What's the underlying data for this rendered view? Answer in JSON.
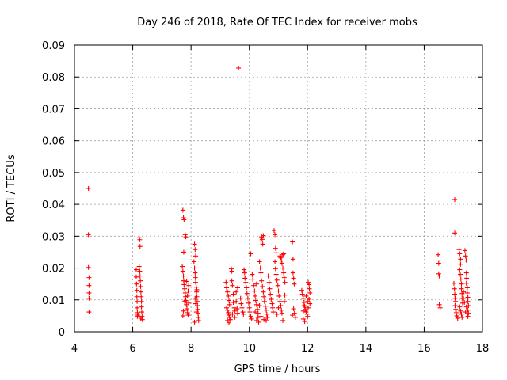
{
  "chart_data": {
    "type": "scatter",
    "title": "Day 246 of 2018, Rate Of TEC Index for receiver mobs",
    "xlabel": "GPS time / hours",
    "ylabel": "ROTI / TECUs",
    "xlim": [
      4,
      18
    ],
    "ylim": [
      0,
      0.09
    ],
    "xticks": [
      "4",
      "6",
      "8",
      "10",
      "12",
      "14",
      "16",
      "18"
    ],
    "yticks": [
      "0",
      "0.01",
      "0.02",
      "0.03",
      "0.04",
      "0.05",
      "0.06",
      "0.07",
      "0.08",
      "0.09"
    ],
    "grid": true,
    "marker": "+",
    "color": "#ff0000",
    "series": [
      {
        "name": "ROTI",
        "points": [
          [
            4.48,
            0.045
          ],
          [
            4.48,
            0.0305
          ],
          [
            4.48,
            0.0202
          ],
          [
            4.5,
            0.017
          ],
          [
            4.5,
            0.0145
          ],
          [
            4.5,
            0.0122
          ],
          [
            4.5,
            0.0105
          ],
          [
            4.5,
            0.0062
          ],
          [
            6.12,
            0.0195
          ],
          [
            6.12,
            0.0172
          ],
          [
            6.13,
            0.015
          ],
          [
            6.14,
            0.013
          ],
          [
            6.14,
            0.011
          ],
          [
            6.15,
            0.0095
          ],
          [
            6.15,
            0.0075
          ],
          [
            6.16,
            0.006
          ],
          [
            6.16,
            0.0048
          ],
          [
            6.18,
            0.0052
          ],
          [
            6.22,
            0.0295
          ],
          [
            6.24,
            0.0289
          ],
          [
            6.25,
            0.0268
          ],
          [
            6.22,
            0.0205
          ],
          [
            6.24,
            0.019
          ],
          [
            6.25,
            0.0175
          ],
          [
            6.26,
            0.016
          ],
          [
            6.27,
            0.0142
          ],
          [
            6.28,
            0.0125
          ],
          [
            6.29,
            0.011
          ],
          [
            6.3,
            0.0095
          ],
          [
            6.3,
            0.0078
          ],
          [
            6.31,
            0.0062
          ],
          [
            6.32,
            0.0048
          ],
          [
            6.33,
            0.0038
          ],
          [
            6.28,
            0.0042
          ],
          [
            7.72,
            0.0382
          ],
          [
            7.74,
            0.0358
          ],
          [
            7.76,
            0.0352
          ],
          [
            7.75,
            0.025
          ],
          [
            7.8,
            0.0305
          ],
          [
            7.82,
            0.0298
          ],
          [
            7.7,
            0.0205
          ],
          [
            7.72,
            0.019
          ],
          [
            7.74,
            0.0175
          ],
          [
            7.75,
            0.016
          ],
          [
            7.76,
            0.0148
          ],
          [
            7.78,
            0.0135
          ],
          [
            7.8,
            0.0122
          ],
          [
            7.81,
            0.011
          ],
          [
            7.82,
            0.0098
          ],
          [
            7.84,
            0.0085
          ],
          [
            7.86,
            0.0072
          ],
          [
            7.88,
            0.006
          ],
          [
            7.9,
            0.0052
          ],
          [
            7.72,
            0.005
          ],
          [
            7.74,
            0.0065
          ],
          [
            7.9,
            0.0128
          ],
          [
            7.92,
            0.0145
          ],
          [
            7.92,
            0.009
          ],
          [
            7.78,
            0.0095
          ],
          [
            7.85,
            0.0158
          ],
          [
            7.88,
            0.0112
          ],
          [
            8.12,
            0.0275
          ],
          [
            8.14,
            0.0258
          ],
          [
            8.16,
            0.0238
          ],
          [
            8.1,
            0.022
          ],
          [
            8.12,
            0.02
          ],
          [
            8.14,
            0.0185
          ],
          [
            8.15,
            0.017
          ],
          [
            8.16,
            0.0155
          ],
          [
            8.18,
            0.014
          ],
          [
            8.19,
            0.0125
          ],
          [
            8.2,
            0.011
          ],
          [
            8.21,
            0.0095
          ],
          [
            8.22,
            0.0082
          ],
          [
            8.23,
            0.007
          ],
          [
            8.24,
            0.0058
          ],
          [
            8.25,
            0.0045
          ],
          [
            8.26,
            0.0035
          ],
          [
            8.12,
            0.003
          ],
          [
            8.14,
            0.0105
          ],
          [
            8.16,
            0.0088
          ],
          [
            8.2,
            0.0132
          ],
          [
            8.18,
            0.0062
          ],
          [
            9.2,
            0.0155
          ],
          [
            9.22,
            0.0138
          ],
          [
            9.25,
            0.0125
          ],
          [
            9.28,
            0.0112
          ],
          [
            9.3,
            0.0098
          ],
          [
            9.32,
            0.0085
          ],
          [
            9.22,
            0.0075
          ],
          [
            9.25,
            0.0068
          ],
          [
            9.28,
            0.006
          ],
          [
            9.3,
            0.0052
          ],
          [
            9.32,
            0.0045
          ],
          [
            9.25,
            0.0035
          ],
          [
            9.3,
            0.0028
          ],
          [
            9.38,
            0.0198
          ],
          [
            9.4,
            0.019
          ],
          [
            9.4,
            0.016
          ],
          [
            9.42,
            0.0145
          ],
          [
            9.45,
            0.0118
          ],
          [
            9.45,
            0.0092
          ],
          [
            9.48,
            0.0075
          ],
          [
            9.5,
            0.0065
          ],
          [
            9.5,
            0.0045
          ],
          [
            9.35,
            0.0038
          ],
          [
            9.42,
            0.0055
          ],
          [
            9.55,
            0.0095
          ],
          [
            9.55,
            0.0125
          ],
          [
            9.58,
            0.0072
          ],
          [
            9.6,
            0.0058
          ],
          [
            9.6,
            0.0138
          ],
          [
            9.63,
            0.0828
          ],
          [
            9.7,
            0.0105
          ],
          [
            9.72,
            0.0088
          ],
          [
            9.75,
            0.0075
          ],
          [
            9.78,
            0.0062
          ],
          [
            9.8,
            0.0055
          ],
          [
            9.82,
            0.0195
          ],
          [
            9.84,
            0.0185
          ],
          [
            9.85,
            0.0168
          ],
          [
            9.88,
            0.0155
          ],
          [
            9.9,
            0.0138
          ],
          [
            9.92,
            0.012
          ],
          [
            9.95,
            0.0105
          ],
          [
            9.98,
            0.009
          ],
          [
            10.0,
            0.0075
          ],
          [
            10.02,
            0.0062
          ],
          [
            10.05,
            0.0048
          ],
          [
            10.08,
            0.004
          ],
          [
            10.05,
            0.0245
          ],
          [
            10.1,
            0.018
          ],
          [
            10.12,
            0.0165
          ],
          [
            10.15,
            0.0145
          ],
          [
            10.18,
            0.0128
          ],
          [
            10.2,
            0.0112
          ],
          [
            10.22,
            0.0098
          ],
          [
            10.25,
            0.0085
          ],
          [
            10.28,
            0.007
          ],
          [
            10.3,
            0.0058
          ],
          [
            10.3,
            0.0045
          ],
          [
            10.25,
            0.0035
          ],
          [
            10.32,
            0.003
          ],
          [
            10.35,
            0.022
          ],
          [
            10.38,
            0.02
          ],
          [
            10.4,
            0.0185
          ],
          [
            10.42,
            0.016
          ],
          [
            10.45,
            0.0142
          ],
          [
            10.48,
            0.0125
          ],
          [
            10.5,
            0.011
          ],
          [
            10.52,
            0.0095
          ],
          [
            10.55,
            0.008
          ],
          [
            10.58,
            0.0068
          ],
          [
            10.6,
            0.0055
          ],
          [
            10.62,
            0.0045
          ],
          [
            10.4,
            0.0285
          ],
          [
            10.42,
            0.0298
          ],
          [
            10.44,
            0.029
          ],
          [
            10.46,
            0.0275
          ],
          [
            10.48,
            0.0302
          ],
          [
            10.4,
            0.0048
          ],
          [
            10.5,
            0.0038
          ],
          [
            10.58,
            0.0035
          ],
          [
            10.2,
            0.0062
          ],
          [
            10.25,
            0.015
          ],
          [
            10.35,
            0.0082
          ],
          [
            10.65,
            0.0175
          ],
          [
            10.68,
            0.0155
          ],
          [
            10.7,
            0.0135
          ],
          [
            10.72,
            0.0118
          ],
          [
            10.75,
            0.0102
          ],
          [
            10.78,
            0.0088
          ],
          [
            10.8,
            0.0075
          ],
          [
            10.82,
            0.0062
          ],
          [
            10.85,
            0.0318
          ],
          [
            10.88,
            0.0305
          ],
          [
            10.9,
            0.0262
          ],
          [
            10.92,
            0.0248
          ],
          [
            10.88,
            0.022
          ],
          [
            10.9,
            0.0198
          ],
          [
            10.92,
            0.018
          ],
          [
            10.95,
            0.0162
          ],
          [
            10.98,
            0.0145
          ],
          [
            11.0,
            0.0128
          ],
          [
            11.02,
            0.0112
          ],
          [
            11.05,
            0.0095
          ],
          [
            11.08,
            0.0082
          ],
          [
            11.1,
            0.0068
          ],
          [
            11.12,
            0.0058
          ],
          [
            11.05,
            0.0238
          ],
          [
            11.08,
            0.0232
          ],
          [
            11.1,
            0.0225
          ],
          [
            11.12,
            0.0215
          ],
          [
            11.15,
            0.0242
          ],
          [
            11.18,
            0.0245
          ],
          [
            11.15,
            0.02
          ],
          [
            11.18,
            0.0185
          ],
          [
            11.2,
            0.017
          ],
          [
            11.22,
            0.0155
          ],
          [
            11.15,
            0.0035
          ],
          [
            11.2,
            0.0095
          ],
          [
            11.22,
            0.0115
          ],
          [
            10.95,
            0.0055
          ],
          [
            11.0,
            0.0075
          ],
          [
            11.48,
            0.0282
          ],
          [
            11.5,
            0.0228
          ],
          [
            11.5,
            0.0185
          ],
          [
            11.52,
            0.0168
          ],
          [
            11.54,
            0.015
          ],
          [
            11.52,
            0.0072
          ],
          [
            11.55,
            0.0058
          ],
          [
            11.58,
            0.0045
          ],
          [
            11.48,
            0.0052
          ],
          [
            11.8,
            0.013
          ],
          [
            11.82,
            0.0118
          ],
          [
            11.85,
            0.0105
          ],
          [
            11.88,
            0.0092
          ],
          [
            11.9,
            0.008
          ],
          [
            11.92,
            0.007
          ],
          [
            11.95,
            0.0062
          ],
          [
            11.98,
            0.0055
          ],
          [
            12.0,
            0.0048
          ],
          [
            11.85,
            0.004
          ],
          [
            11.9,
            0.0032
          ],
          [
            12.02,
            0.0155
          ],
          [
            12.05,
            0.0148
          ],
          [
            12.06,
            0.0135
          ],
          [
            12.08,
            0.0122
          ],
          [
            12.05,
            0.0102
          ],
          [
            12.08,
            0.0088
          ],
          [
            12.02,
            0.0075
          ],
          [
            11.85,
            0.0065
          ],
          [
            11.88,
            0.0082
          ],
          [
            11.95,
            0.0112
          ],
          [
            12.0,
            0.0095
          ],
          [
            16.48,
            0.0242
          ],
          [
            16.5,
            0.0215
          ],
          [
            16.5,
            0.0182
          ],
          [
            16.52,
            0.0175
          ],
          [
            16.52,
            0.0085
          ],
          [
            16.55,
            0.0075
          ],
          [
            17.05,
            0.0415
          ],
          [
            17.05,
            0.031
          ],
          [
            17.02,
            0.0152
          ],
          [
            17.04,
            0.0135
          ],
          [
            17.05,
            0.0118
          ],
          [
            17.06,
            0.0105
          ],
          [
            17.08,
            0.0095
          ],
          [
            17.06,
            0.0082
          ],
          [
            17.08,
            0.007
          ],
          [
            17.1,
            0.006
          ],
          [
            17.12,
            0.005
          ],
          [
            17.15,
            0.0042
          ],
          [
            17.2,
            0.0258
          ],
          [
            17.22,
            0.0245
          ],
          [
            17.25,
            0.0228
          ],
          [
            17.25,
            0.0212
          ],
          [
            17.22,
            0.0195
          ],
          [
            17.24,
            0.018
          ],
          [
            17.26,
            0.0165
          ],
          [
            17.28,
            0.015
          ],
          [
            17.28,
            0.0135
          ],
          [
            17.3,
            0.012
          ],
          [
            17.3,
            0.0105
          ],
          [
            17.32,
            0.009
          ],
          [
            17.22,
            0.0078
          ],
          [
            17.25,
            0.0065
          ],
          [
            17.28,
            0.0055
          ],
          [
            17.3,
            0.0045
          ],
          [
            17.35,
            0.0125
          ],
          [
            17.4,
            0.0255
          ],
          [
            17.42,
            0.0238
          ],
          [
            17.44,
            0.0225
          ],
          [
            17.45,
            0.0185
          ],
          [
            17.46,
            0.0168
          ],
          [
            17.45,
            0.0152
          ],
          [
            17.48,
            0.0138
          ],
          [
            17.48,
            0.0122
          ],
          [
            17.5,
            0.0108
          ],
          [
            17.5,
            0.0095
          ],
          [
            17.52,
            0.0082
          ],
          [
            17.5,
            0.0068
          ],
          [
            17.52,
            0.0058
          ],
          [
            17.5,
            0.0048
          ],
          [
            17.42,
            0.0062
          ],
          [
            17.45,
            0.0078
          ],
          [
            17.38,
            0.0092
          ],
          [
            17.35,
            0.0105
          ]
        ]
      }
    ]
  }
}
